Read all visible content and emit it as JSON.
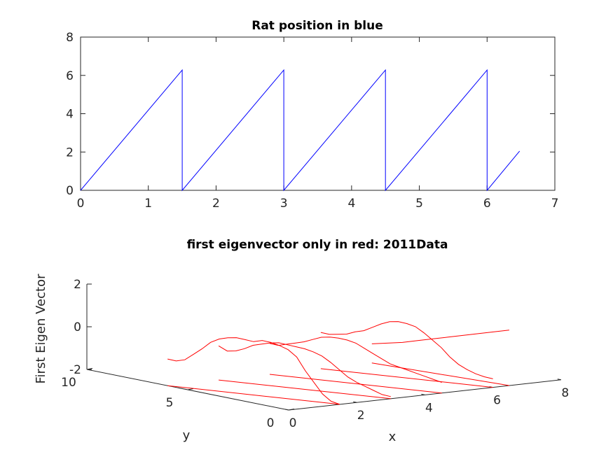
{
  "chart_data": [
    {
      "type": "line",
      "title": "Rat position in blue",
      "xlabel": "",
      "ylabel": "",
      "xlim": [
        0,
        7
      ],
      "ylim": [
        0,
        8
      ],
      "xticks": [
        "0",
        "1",
        "2",
        "3",
        "4",
        "5",
        "6",
        "7"
      ],
      "yticks": [
        "0",
        "2",
        "4",
        "6",
        "8"
      ],
      "grid": false,
      "series": [
        {
          "color": "#0000ff",
          "x": [
            0,
            1.5,
            1.5,
            3.0,
            3.0,
            4.5,
            4.5,
            6.0,
            6.0,
            6.48
          ],
          "y": [
            0,
            6.28,
            0,
            6.28,
            0,
            6.28,
            0,
            6.28,
            0,
            2.05
          ]
        }
      ]
    },
    {
      "type": "line",
      "projection": "3d",
      "title": "first eigenvector only in  red: 2011Data",
      "xlabel": "x",
      "ylabel": "y",
      "zlabel": "First Eigen Vector",
      "xlim": [
        0,
        8
      ],
      "ylim": [
        0,
        10
      ],
      "zlim": [
        -2,
        2
      ],
      "xticks": [
        "0",
        "2",
        "4",
        "6",
        "8"
      ],
      "yticks": [
        "0",
        "5",
        "10"
      ],
      "zticks": [
        "-2",
        "0",
        "2"
      ],
      "series_color": "#ff0000",
      "traces": [
        {
          "x0": 0.0,
          "x1": 1.5,
          "y0": 6.0,
          "y1": 0.0,
          "z": [
            -0.75,
            -0.8,
            -0.7,
            -0.4,
            -0.1,
            0.25,
            0.45,
            0.55,
            0.6,
            0.55,
            0.5,
            0.6,
            0.55,
            0.45,
            0.3,
            0.0,
            -0.6,
            -1.1,
            -1.6,
            -1.9,
            -2.0
          ]
        },
        {
          "x0": 1.5,
          "x1": 3.0,
          "y0": 6.0,
          "y1": 0.0,
          "z": [
            -0.4,
            -0.6,
            -0.55,
            -0.4,
            -0.2,
            -0.1,
            0.0,
            0.05,
            0.0,
            -0.05,
            -0.1,
            -0.2,
            -0.35,
            -0.6,
            -0.9,
            -1.2,
            -1.4,
            -1.55,
            -1.7,
            -1.85,
            -1.9
          ]
        },
        {
          "x0": 3.0,
          "x1": 4.5,
          "y0": 6.0,
          "y1": 0.0,
          "z": [
            -0.55,
            -0.6,
            -0.5,
            -0.4,
            -0.3,
            -0.15,
            0.0,
            0.05,
            0.05,
            0.0,
            -0.1,
            -0.3,
            -0.5,
            -0.7,
            -0.9,
            -1.0,
            -1.1,
            -1.2,
            -1.3,
            -1.4,
            -1.5
          ]
        },
        {
          "x0": 4.5,
          "x1": 6.0,
          "y0": 6.0,
          "y1": 0.0,
          "z": [
            -0.3,
            -0.35,
            -0.3,
            -0.25,
            -0.1,
            0.0,
            0.2,
            0.4,
            0.55,
            0.6,
            0.55,
            0.45,
            0.2,
            -0.1,
            -0.4,
            -0.8,
            -1.1,
            -1.3,
            -1.45,
            -1.55,
            -1.6
          ]
        },
        {
          "x0": 6.0,
          "x1": 6.48,
          "y0": 6.0,
          "y1": 0.0,
          "z": [
            -1.1,
            -0.95,
            -0.8,
            -0.6,
            -0.4,
            -0.2,
            0.0,
            0.2,
            0.4,
            0.6
          ]
        }
      ]
    }
  ]
}
